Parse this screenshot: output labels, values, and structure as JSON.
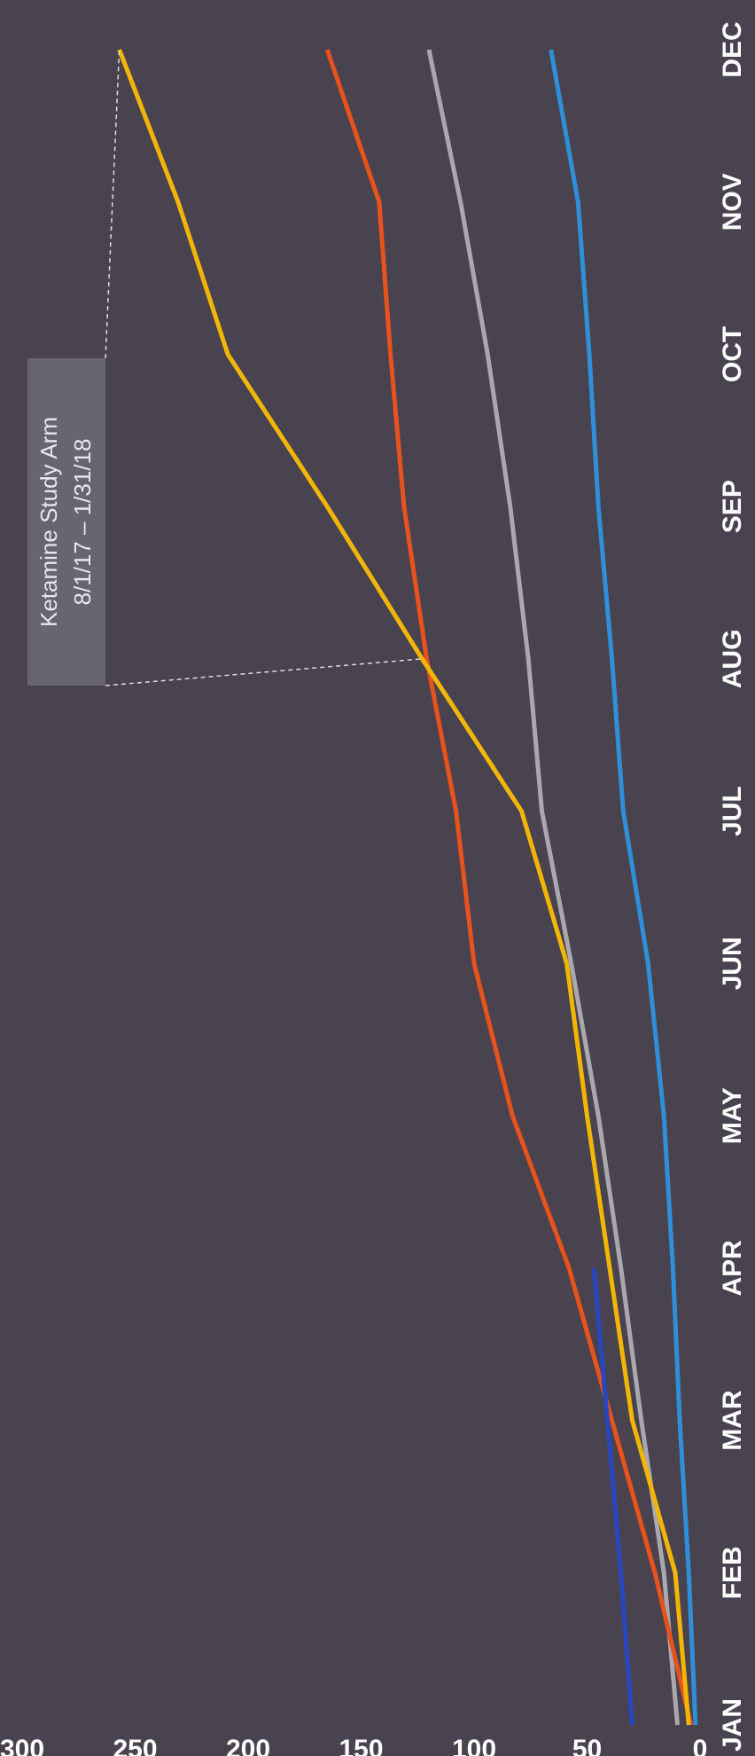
{
  "chart_data": {
    "type": "line",
    "categories": [
      "JAN",
      "FEB",
      "MAR",
      "APR",
      "MAY",
      "JUN",
      "JUL",
      "AUG",
      "SEP",
      "OCT",
      "NOV",
      "DEC"
    ],
    "series": [
      {
        "color": "#2f8fd8",
        "values": [
          2,
          5,
          9,
          12,
          16,
          23,
          34,
          39,
          45,
          49,
          54,
          66
        ]
      },
      {
        "color": "#a9a9ad",
        "values": [
          10,
          16,
          26,
          35,
          45,
          57,
          70,
          76,
          84,
          94,
          106,
          120
        ]
      },
      {
        "color": "#e8521c",
        "values": [
          4,
          20,
          39,
          58,
          83,
          100,
          108,
          121,
          131,
          137,
          142,
          165
        ]
      },
      {
        "color": "#f2b600",
        "values": [
          5,
          11,
          30,
          40,
          50,
          59,
          79,
          123,
          165,
          209,
          231,
          257
        ]
      },
      {
        "color": "#2747c0",
        "values": [
          30,
          35,
          41,
          47,
          null,
          null,
          null,
          null,
          null,
          null,
          null,
          null
        ]
      }
    ],
    "ylim": [
      0,
      300
    ],
    "yticks": [
      0,
      50,
      100,
      150,
      200,
      250,
      300
    ],
    "annotation": [
      "Ketamine Study Arm",
      "8/1/17 – 1/31/18"
    ]
  }
}
